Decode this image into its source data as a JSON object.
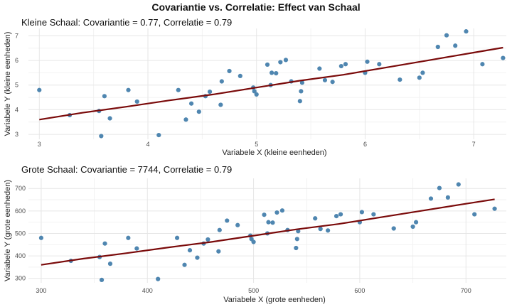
{
  "title": "Covariantie vs. Correlatie: Effect van Schaal",
  "colors": {
    "point": "#4f86b0",
    "line": "#7a0a0a",
    "grid": "#e6e6e6"
  },
  "chart_data": [
    {
      "type": "scatter",
      "title": "Kleine Schaal: Covariantie = 0.77, Correlatie = 0.79",
      "xlabel": "Variabele X (kleine eenheden)",
      "ylabel": "Variabele Y (kleine eenheden)",
      "xlim": [
        2.9,
        7.3
      ],
      "ylim": [
        2.8,
        7.3
      ],
      "xticks": [
        3,
        4,
        5,
        6,
        7
      ],
      "yticks": [
        3,
        4,
        5,
        6,
        7
      ],
      "grid": true,
      "points": [
        [
          3.0,
          4.8
        ],
        [
          3.28,
          3.78
        ],
        [
          3.55,
          3.95
        ],
        [
          3.57,
          2.93
        ],
        [
          3.6,
          4.55
        ],
        [
          3.65,
          3.65
        ],
        [
          3.82,
          4.8
        ],
        [
          3.9,
          4.33
        ],
        [
          4.1,
          2.97
        ],
        [
          4.28,
          4.8
        ],
        [
          4.35,
          3.6
        ],
        [
          4.4,
          4.25
        ],
        [
          4.47,
          3.92
        ],
        [
          4.53,
          4.55
        ],
        [
          4.57,
          4.73
        ],
        [
          4.67,
          4.2
        ],
        [
          4.68,
          5.15
        ],
        [
          4.75,
          5.57
        ],
        [
          4.85,
          5.37
        ],
        [
          4.97,
          4.9
        ],
        [
          4.98,
          4.75
        ],
        [
          5.0,
          4.62
        ],
        [
          5.1,
          5.83
        ],
        [
          5.13,
          5.0
        ],
        [
          5.14,
          5.5
        ],
        [
          5.18,
          5.48
        ],
        [
          5.22,
          5.93
        ],
        [
          5.27,
          6.02
        ],
        [
          5.32,
          5.15
        ],
        [
          5.4,
          4.35
        ],
        [
          5.41,
          4.75
        ],
        [
          5.42,
          5.1
        ],
        [
          5.58,
          5.67
        ],
        [
          5.63,
          5.2
        ],
        [
          5.7,
          5.13
        ],
        [
          5.78,
          5.77
        ],
        [
          5.82,
          5.85
        ],
        [
          6.0,
          5.5
        ],
        [
          6.02,
          5.95
        ],
        [
          6.13,
          5.85
        ],
        [
          6.32,
          5.22
        ],
        [
          6.5,
          5.3
        ],
        [
          6.53,
          5.5
        ],
        [
          6.67,
          6.55
        ],
        [
          6.75,
          7.02
        ],
        [
          6.83,
          6.6
        ],
        [
          6.93,
          7.18
        ],
        [
          7.08,
          5.85
        ],
        [
          7.27,
          6.1
        ]
      ],
      "trend": [
        [
          3.0,
          3.6
        ],
        [
          3.4,
          3.88
        ],
        [
          3.8,
          4.12
        ],
        [
          4.2,
          4.38
        ],
        [
          4.6,
          4.62
        ],
        [
          5.0,
          4.9
        ],
        [
          5.4,
          5.18
        ],
        [
          5.8,
          5.42
        ],
        [
          6.2,
          5.72
        ],
        [
          6.6,
          6.02
        ],
        [
          7.0,
          6.32
        ],
        [
          7.27,
          6.52
        ]
      ]
    },
    {
      "type": "scatter",
      "title": "Grote Schaal: Covariantie = 7744, Correlatie = 0.79",
      "xlabel": "Variabele X (grote eenheden)",
      "ylabel": "Variabele Y (grote eenheden)",
      "xlim": [
        288,
        738
      ],
      "ylim": [
        280,
        745
      ],
      "xticks": [
        300,
        400,
        500,
        600,
        700
      ],
      "yticks": [
        300,
        400,
        500,
        600,
        700
      ],
      "grid": true,
      "points": [
        [
          300,
          480
        ],
        [
          328,
          378
        ],
        [
          355,
          395
        ],
        [
          357,
          293
        ],
        [
          360,
          455
        ],
        [
          365,
          365
        ],
        [
          382,
          480
        ],
        [
          390,
          433
        ],
        [
          410,
          297
        ],
        [
          428,
          480
        ],
        [
          435,
          360
        ],
        [
          440,
          425
        ],
        [
          447,
          392
        ],
        [
          453,
          455
        ],
        [
          457,
          473
        ],
        [
          467,
          420
        ],
        [
          468,
          515
        ],
        [
          475,
          557
        ],
        [
          485,
          537
        ],
        [
          497,
          490
        ],
        [
          498,
          475
        ],
        [
          500,
          462
        ],
        [
          510,
          583
        ],
        [
          513,
          500
        ],
        [
          514,
          550
        ],
        [
          518,
          548
        ],
        [
          522,
          593
        ],
        [
          527,
          602
        ],
        [
          532,
          515
        ],
        [
          540,
          435
        ],
        [
          541,
          475
        ],
        [
          542,
          510
        ],
        [
          558,
          567
        ],
        [
          563,
          520
        ],
        [
          570,
          513
        ],
        [
          578,
          577
        ],
        [
          582,
          585
        ],
        [
          600,
          550
        ],
        [
          602,
          595
        ],
        [
          613,
          585
        ],
        [
          632,
          522
        ],
        [
          650,
          530
        ],
        [
          653,
          550
        ],
        [
          667,
          655
        ],
        [
          675,
          702
        ],
        [
          683,
          660
        ],
        [
          693,
          718
        ],
        [
          708,
          585
        ],
        [
          727,
          610
        ]
      ],
      "trend": [
        [
          300,
          360
        ],
        [
          340,
          388
        ],
        [
          380,
          412
        ],
        [
          420,
          438
        ],
        [
          460,
          462
        ],
        [
          500,
          490
        ],
        [
          540,
          518
        ],
        [
          580,
          542
        ],
        [
          620,
          572
        ],
        [
          660,
          602
        ],
        [
          700,
          632
        ],
        [
          727,
          652
        ]
      ]
    }
  ]
}
